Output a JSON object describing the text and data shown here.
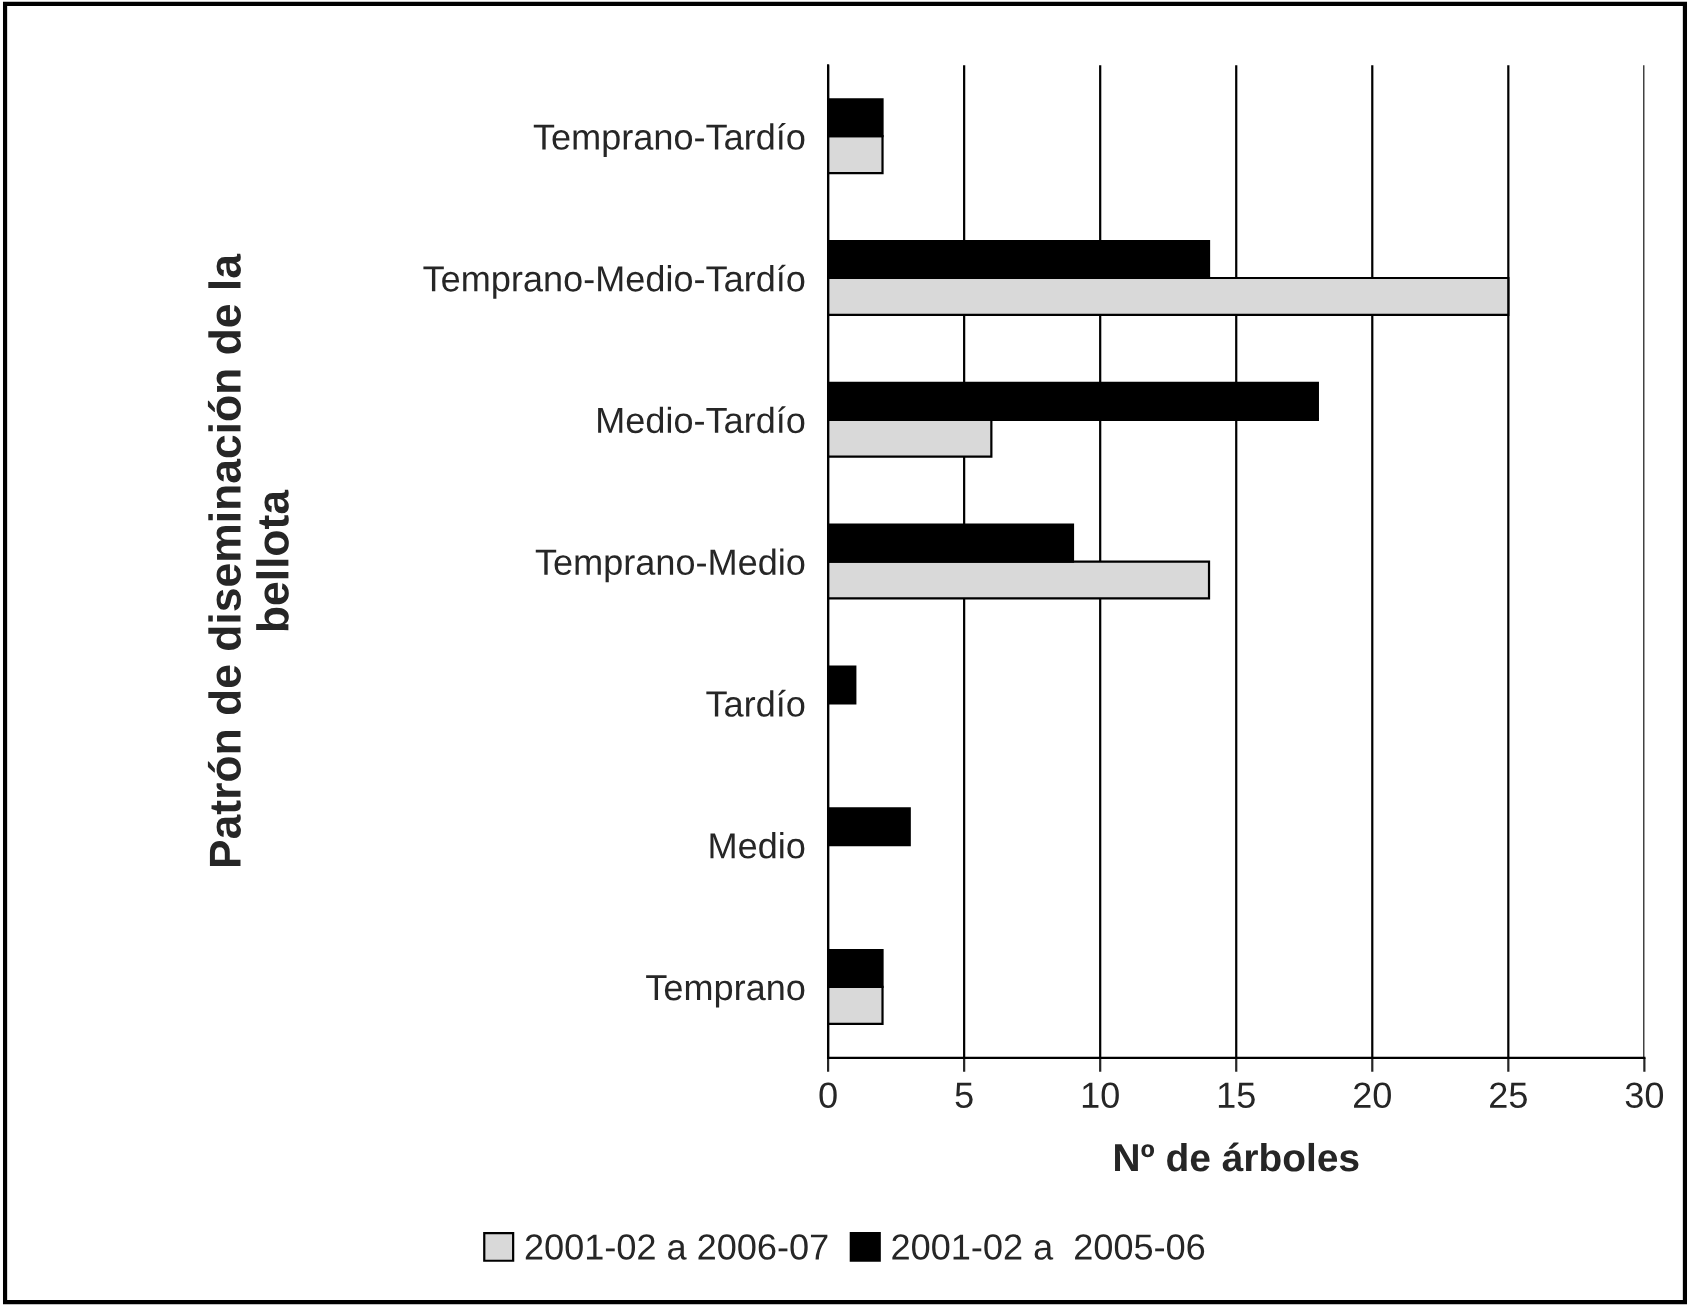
{
  "chart_data": {
    "type": "bar",
    "orientation": "horizontal",
    "ylabel": "Patrón de diseminación de la bellota",
    "xlabel": "Nº de árboles",
    "categories": [
      "Temprano-Tardío",
      "Temprano-Medio-Tardío",
      "Medio-Tardío",
      "Temprano-Medio",
      "Tardío",
      "Medio",
      "Temprano"
    ],
    "series": [
      {
        "name": "2001-02 a 2006-07",
        "color": "#d9d9d9",
        "values": [
          2,
          25,
          6,
          14,
          null,
          null,
          2
        ]
      },
      {
        "name": "2001-02 a  2005-06",
        "color": "#000000",
        "values": [
          2,
          14,
          18,
          9,
          1,
          3,
          2
        ]
      }
    ],
    "xlim": [
      0,
      30
    ],
    "xticks": [
      0,
      5,
      10,
      15,
      20,
      25,
      30
    ],
    "grid": "x",
    "legend": "bottom"
  }
}
